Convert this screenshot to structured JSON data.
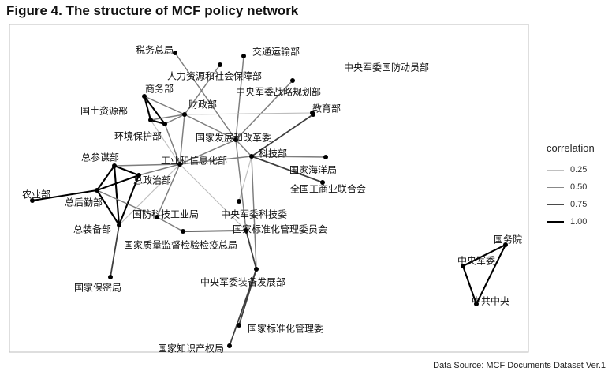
{
  "title": "Figure 4. The structure of MCF policy network",
  "source": "Data Source: MCF Documents Dataset Ver.1",
  "legend": {
    "title": "correlation",
    "items": [
      {
        "label": "0.25",
        "value": 0.25,
        "color": "#c0c0c0"
      },
      {
        "label": "0.50",
        "value": 0.5,
        "color": "#888888"
      },
      {
        "label": "0.75",
        "value": 0.75,
        "color": "#4a4a4a"
      },
      {
        "label": "1.00",
        "value": 1.0,
        "color": "#000000"
      }
    ]
  },
  "nodes": [
    {
      "id": "swzj",
      "label": "税务总局"
    },
    {
      "id": "jtysb",
      "label": "交通运输部"
    },
    {
      "id": "zyjwgfdy",
      "label": "中央军委国防动员部"
    },
    {
      "id": "rlzy",
      "label": "人力资源和社会保障部"
    },
    {
      "id": "swb",
      "label": "商务部"
    },
    {
      "id": "zyjwzlgh",
      "label": "中央军委战略规划部"
    },
    {
      "id": "gtzyb",
      "label": "国土资源部"
    },
    {
      "id": "czb",
      "label": "财政部"
    },
    {
      "id": "jyb",
      "label": "教育部"
    },
    {
      "id": "hjbhb",
      "label": "环境保护部"
    },
    {
      "id": "fgw",
      "label": "国家发展和改革委"
    },
    {
      "id": "kjb",
      "label": "科技部"
    },
    {
      "id": "zcmb",
      "label": "总参谋部"
    },
    {
      "id": "gyhxxhb",
      "label": "工业和信息化部"
    },
    {
      "id": "gjhyj",
      "label": "国家海洋局"
    },
    {
      "id": "zzzb",
      "label": "总政治部"
    },
    {
      "id": "qggslhh",
      "label": "全国工商业联合会"
    },
    {
      "id": "nyb",
      "label": "农业部"
    },
    {
      "id": "zhqb",
      "label": "总后勤部"
    },
    {
      "id": "gfkjgyj",
      "label": "国防科技工业局"
    },
    {
      "id": "zyjwkjw",
      "label": "中央军委科技委"
    },
    {
      "id": "zzbb",
      "label": "总装备部"
    },
    {
      "id": "gjbzhglwyh",
      "label": "国家标准化管理委员会"
    },
    {
      "id": "zljj",
      "label": "国家质量监督检验检疫总局"
    },
    {
      "id": "gwy",
      "label": "国务院"
    },
    {
      "id": "zyjw",
      "label": "中央军委"
    },
    {
      "id": "zyjwzbfz",
      "label": "中央军委装备发展部"
    },
    {
      "id": "gjbmj",
      "label": "国家保密局"
    },
    {
      "id": "zgzy",
      "label": "中共中央"
    },
    {
      "id": "gjbzhglw",
      "label": "国家标准化管理委"
    },
    {
      "id": "zscqj",
      "label": "国家知识产权局"
    }
  ],
  "edges": [
    {
      "source": "swzj",
      "target": "fgw",
      "weight": 0.5
    },
    {
      "source": "jtysb",
      "target": "fgw",
      "weight": 0.5
    },
    {
      "source": "rlzy",
      "target": "czb",
      "weight": 0.5
    },
    {
      "source": "zyjwzlgh",
      "target": "fgw",
      "weight": 0.5
    },
    {
      "source": "zyjwgfdy",
      "target": "kjb",
      "weight": 0.75
    },
    {
      "source": "swb",
      "target": "gtzyb",
      "weight": 1.0
    },
    {
      "source": "swb",
      "target": "hjbhb",
      "weight": 1.0
    },
    {
      "source": "gtzyb",
      "target": "hjbhb",
      "weight": 1.0
    },
    {
      "source": "swb",
      "target": "czb",
      "weight": 0.5
    },
    {
      "source": "gtzyb",
      "target": "czb",
      "weight": 0.5
    },
    {
      "source": "hjbhb",
      "target": "czb",
      "weight": 0.5
    },
    {
      "source": "czb",
      "target": "fgw",
      "weight": 0.5
    },
    {
      "source": "czb",
      "target": "gyhxxhb",
      "weight": 0.5
    },
    {
      "source": "czb",
      "target": "jyb",
      "weight": 0.25
    },
    {
      "source": "gtzyb",
      "target": "gyhxxhb",
      "weight": 0.25
    },
    {
      "source": "hjbhb",
      "target": "gyhxxhb",
      "weight": 0.5
    },
    {
      "source": "fgw",
      "target": "gyhxxhb",
      "weight": 0.5
    },
    {
      "source": "fgw",
      "target": "kjb",
      "weight": 0.5
    },
    {
      "source": "kjb",
      "target": "gyhxxhb",
      "weight": 0.5
    },
    {
      "source": "kjb",
      "target": "gjhyj",
      "weight": 0.5
    },
    {
      "source": "kjb",
      "target": "qggslhh",
      "weight": 0.75
    },
    {
      "source": "kjb",
      "target": "zyjwkjw",
      "weight": 0.25
    },
    {
      "source": "kjb",
      "target": "zyjwzbfz",
      "weight": 0.5
    },
    {
      "source": "fgw",
      "target": "zljj",
      "weight": 0.5
    },
    {
      "source": "gyhxxhb",
      "target": "zzzb",
      "weight": 0.5
    },
    {
      "source": "gyhxxhb",
      "target": "zcmb",
      "weight": 0.5
    },
    {
      "source": "gyhxxhb",
      "target": "zzbb",
      "weight": 0.25
    },
    {
      "source": "gyhxxhb",
      "target": "gfkjgyj",
      "weight": 0.5
    },
    {
      "source": "gyhxxhb",
      "target": "zljj",
      "weight": 0.25
    },
    {
      "source": "zcmb",
      "target": "zzzb",
      "weight": 1.0
    },
    {
      "source": "zcmb",
      "target": "zhqb",
      "weight": 1.0
    },
    {
      "source": "zcmb",
      "target": "zzbb",
      "weight": 1.0
    },
    {
      "source": "zzzb",
      "target": "zhqb",
      "weight": 1.0
    },
    {
      "source": "zzzb",
      "target": "zzbb",
      "weight": 1.0
    },
    {
      "source": "zhqb",
      "target": "zzbb",
      "weight": 1.0
    },
    {
      "source": "nyb",
      "target": "zhqb",
      "weight": 1.0
    },
    {
      "source": "zhqb",
      "target": "gfkjgyj",
      "weight": 0.5
    },
    {
      "source": "zzbb",
      "target": "gjbmj",
      "weight": 0.75
    },
    {
      "source": "gfkjgyj",
      "target": "gjbzhglwyh",
      "weight": 0.5
    },
    {
      "source": "zljj",
      "target": "gjbzhglwyh",
      "weight": 0.75
    },
    {
      "source": "zljj",
      "target": "zyjwzbfz",
      "weight": 0.75
    },
    {
      "source": "zyjwzbfz",
      "target": "gjbzhglw",
      "weight": 0.75
    },
    {
      "source": "zyjwzbfz",
      "target": "zscqj",
      "weight": 0.75
    },
    {
      "source": "gwy",
      "target": "zyjw",
      "weight": 1.0
    },
    {
      "source": "gwy",
      "target": "zgzy",
      "weight": 1.0
    },
    {
      "source": "zyjw",
      "target": "zgzy",
      "weight": 1.0
    }
  ]
}
